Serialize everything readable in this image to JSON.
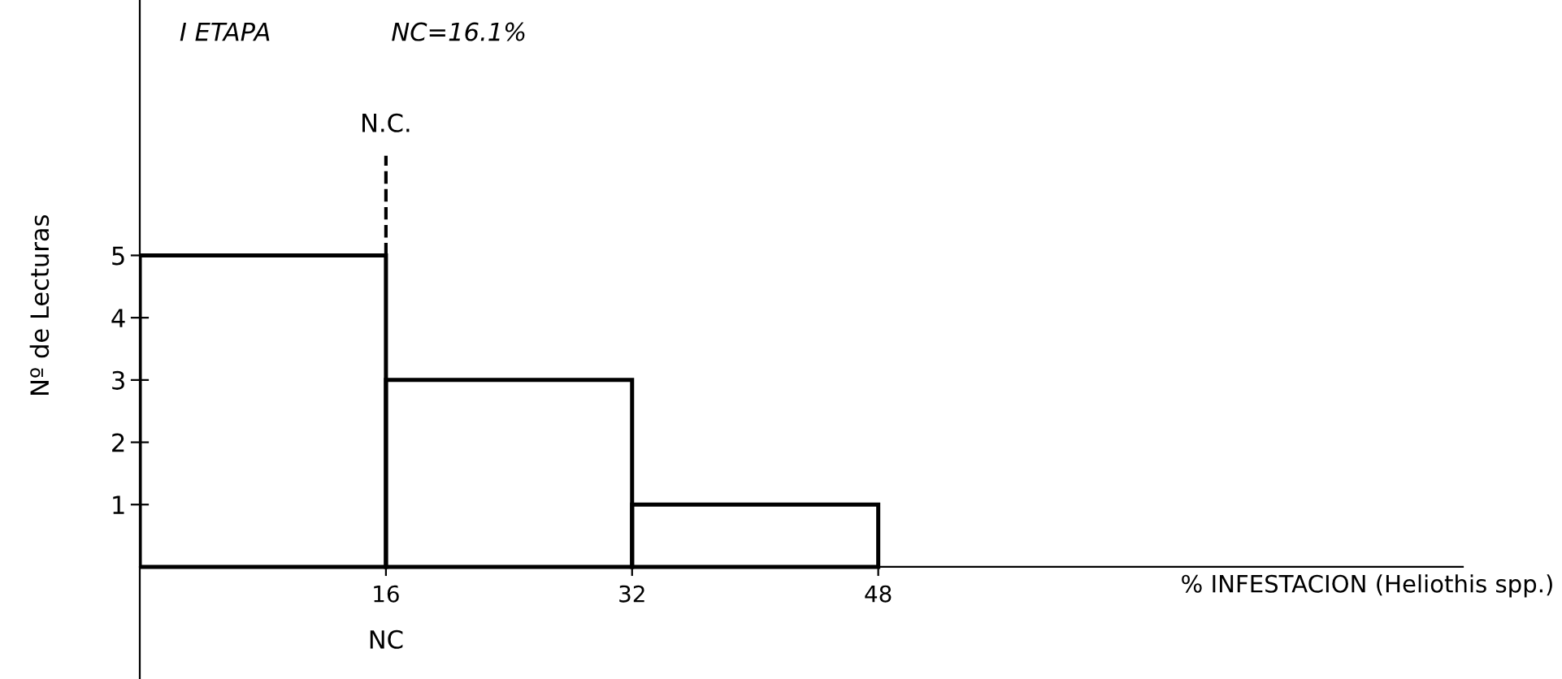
{
  "chart_data": {
    "type": "histogram",
    "title": "I ETAPA",
    "subtitle": "NC=16.1%",
    "xlabel": "% INFESTACION (Heliothis spp.)",
    "ylabel": "Nº de Lecturas",
    "bins": [
      0,
      16,
      32,
      48
    ],
    "values": [
      5,
      3,
      1
    ],
    "color": "#000000",
    "xlim": [
      0,
      86
    ],
    "ylim": [
      -1.8,
      9.1
    ],
    "xticks": [
      16,
      32,
      48
    ],
    "yticks": [
      1,
      2,
      3,
      4,
      5
    ],
    "annotations": [
      "NC"
    ],
    "ref_lines": [
      {
        "axis": "x",
        "value": 16,
        "label": "N.C.",
        "line_style": "dashed"
      }
    ],
    "grid": false,
    "legend": false
  }
}
